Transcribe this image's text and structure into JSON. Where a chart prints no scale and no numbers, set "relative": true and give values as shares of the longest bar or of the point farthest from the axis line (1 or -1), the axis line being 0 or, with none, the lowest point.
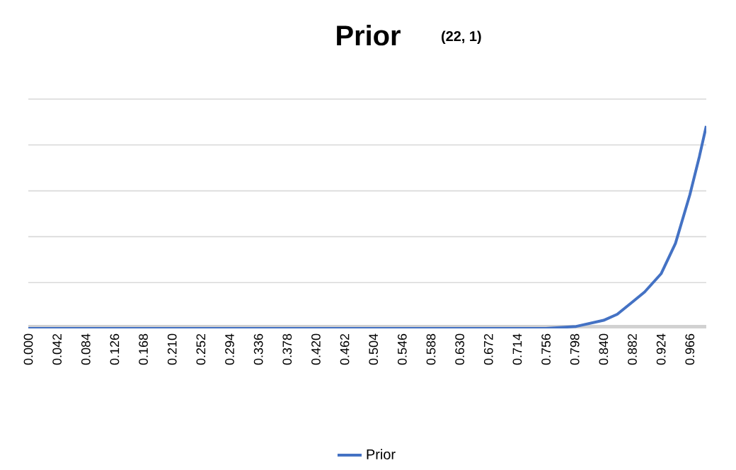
{
  "chart_data": {
    "type": "line",
    "title": "Prior",
    "subtitle": "(22, 1)",
    "relative": true,
    "x": [
      0,
      0.3,
      0.6,
      0.756,
      0.8,
      0.84,
      0.86,
      0.882,
      0.9,
      0.924,
      0.945,
      0.966,
      0.98,
      0.99
    ],
    "series": [
      {
        "name": "Prior",
        "color": "#4472c4",
        "values": [
          0,
          0,
          0,
          0,
          0.01,
          0.04,
          0.07,
          0.13,
          0.18,
          0.27,
          0.42,
          0.66,
          0.85,
          1
        ]
      }
    ],
    "xlim": [
      0,
      0.99
    ],
    "xticks": [
      {
        "value": 0,
        "label": "0.000"
      },
      {
        "value": 0.042,
        "label": "0.042"
      },
      {
        "value": 0.084,
        "label": "0.084"
      },
      {
        "value": 0.126,
        "label": "0.126"
      },
      {
        "value": 0.168,
        "label": "0.168"
      },
      {
        "value": 0.21,
        "label": "0.210"
      },
      {
        "value": 0.252,
        "label": "0.252"
      },
      {
        "value": 0.294,
        "label": "0.294"
      },
      {
        "value": 0.336,
        "label": "0.336"
      },
      {
        "value": 0.378,
        "label": "0.378"
      },
      {
        "value": 0.42,
        "label": "0.420"
      },
      {
        "value": 0.462,
        "label": "0.462"
      },
      {
        "value": 0.504,
        "label": "0.504"
      },
      {
        "value": 0.546,
        "label": "0.546"
      },
      {
        "value": 0.588,
        "label": "0.588"
      },
      {
        "value": 0.63,
        "label": "0.630"
      },
      {
        "value": 0.672,
        "label": "0.672"
      },
      {
        "value": 0.714,
        "label": "0.714"
      },
      {
        "value": 0.756,
        "label": "0.756"
      },
      {
        "value": 0.798,
        "label": "0.798"
      },
      {
        "value": 0.84,
        "label": "0.840"
      },
      {
        "value": 0.882,
        "label": "0.882"
      },
      {
        "value": 0.924,
        "label": "0.924"
      },
      {
        "value": 0.966,
        "label": "0.966"
      }
    ],
    "grid": "y",
    "legend": "bottom",
    "marker": "none",
    "line_style": "solid"
  }
}
